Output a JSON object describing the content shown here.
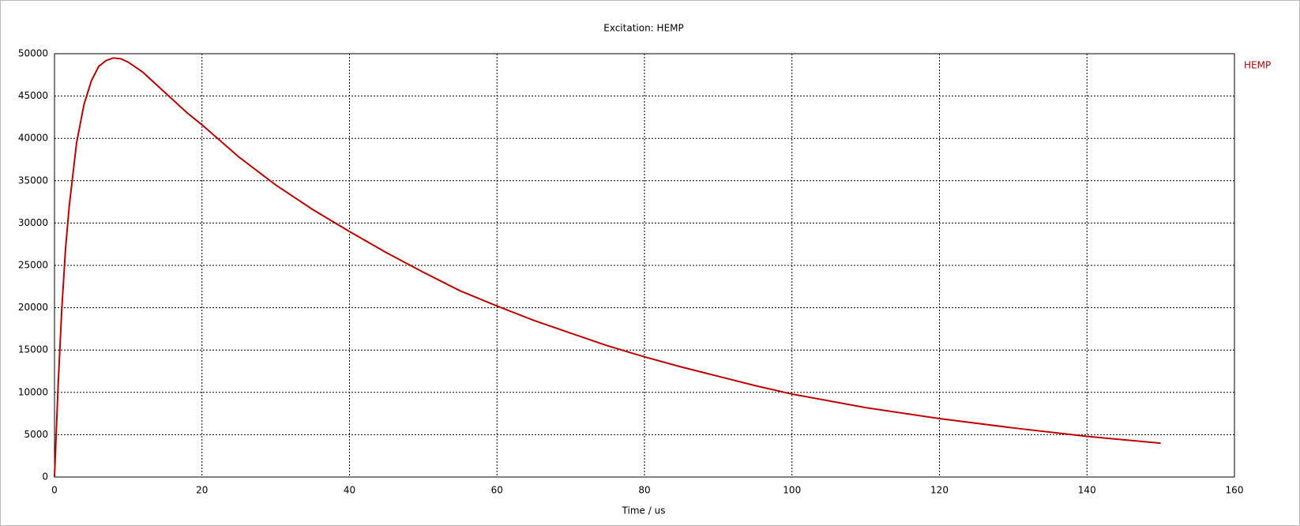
{
  "chart_data": {
    "type": "line",
    "title": "Excitation: HEMP",
    "x_label": "Time / us",
    "x": [
      0,
      0.5,
      1,
      1.5,
      2,
      3,
      4,
      5,
      6,
      7,
      8,
      9,
      10,
      12,
      14,
      16,
      18,
      20,
      25,
      30,
      35,
      40,
      45,
      50,
      55,
      60,
      65,
      70,
      75,
      80,
      85,
      90,
      95,
      100,
      110,
      120,
      130,
      140,
      150
    ],
    "series": [
      {
        "name": "HEMP",
        "color": "#c00000",
        "values": [
          0,
          11000,
          20000,
          27000,
          32000,
          39500,
          44000,
          46800,
          48500,
          49200,
          49500,
          49400,
          49000,
          47800,
          46200,
          44600,
          43000,
          41600,
          37800,
          34500,
          31600,
          29000,
          26500,
          24200,
          22000,
          20200,
          18500,
          17000,
          15500,
          14200,
          13000,
          11900,
          10800,
          9800,
          8200,
          6900,
          5800,
          4800,
          4000
        ]
      }
    ],
    "xlim": [
      0,
      160
    ],
    "xticks": [
      0,
      20,
      40,
      60,
      80,
      100,
      120,
      140,
      160
    ],
    "ylim": [
      0,
      50000
    ],
    "yticks": [
      0,
      5000,
      10000,
      15000,
      20000,
      25000,
      30000,
      35000,
      40000,
      45000,
      50000
    ],
    "grid": true,
    "legend": "right"
  }
}
